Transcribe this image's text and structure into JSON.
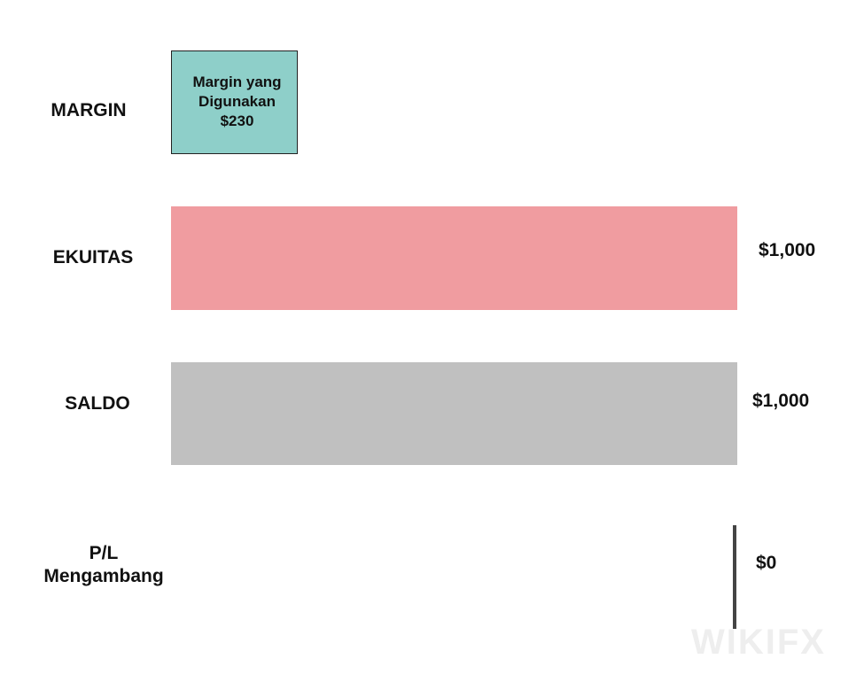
{
  "rows": [
    {
      "label": [
        "MARGIN"
      ],
      "box_text": [
        "Margin yang Digunakan",
        "$230"
      ]
    },
    {
      "label": [
        "EKUITAS"
      ],
      "value": "$1,000"
    },
    {
      "label": [
        "SALDO"
      ],
      "value": "$1,000"
    },
    {
      "label": [
        "P/L",
        "Mengambang"
      ],
      "value": "$0"
    }
  ],
  "watermark": "WIKIFX"
}
